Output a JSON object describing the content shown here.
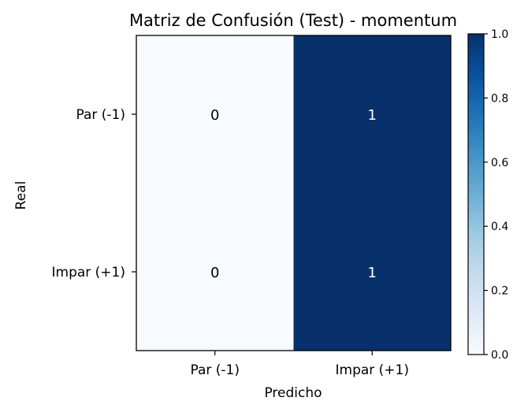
{
  "chart_data": {
    "type": "heatmap",
    "title": "Matriz de Confusión (Test) - momentum",
    "xlabel": "Predicho",
    "ylabel": "Real",
    "x_categories": [
      "Par (-1)",
      "Impar (+1)"
    ],
    "y_categories": [
      "Par (-1)",
      "Impar (+1)"
    ],
    "values": [
      [
        0,
        1
      ],
      [
        0,
        1
      ]
    ],
    "colormap": "Blues",
    "color_low": "#f7fbff",
    "color_high": "#08306b",
    "colorbar": {
      "range": [
        0.0,
        1.0
      ],
      "ticks": [
        0.0,
        0.2,
        0.4,
        0.6,
        0.8,
        1.0
      ],
      "tick_labels": [
        "0.0",
        "0.2",
        "0.4",
        "0.6",
        "0.8",
        "1.0"
      ],
      "placement": "right"
    },
    "grid": false
  }
}
